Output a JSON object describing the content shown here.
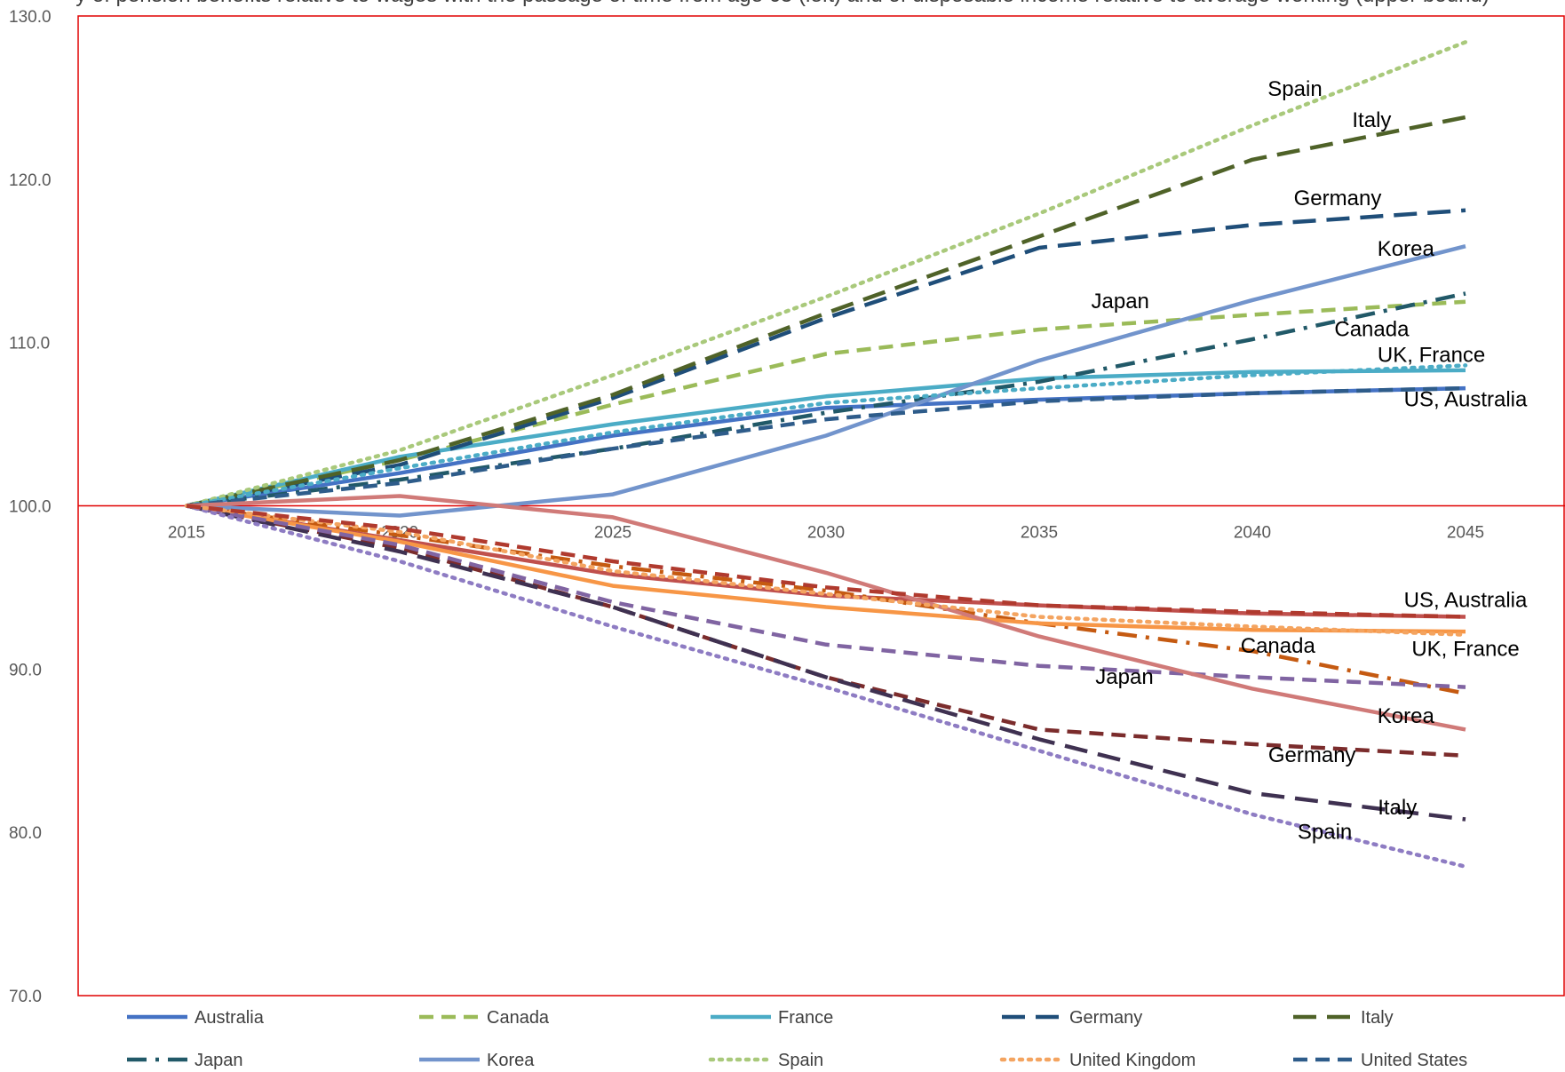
{
  "chart_data": {
    "type": "line",
    "title": "y of pension benefits relative to wages with the passage of time from age 65 (left) and of disposable income relative to average working (upper bound)",
    "xlabel": "",
    "ylabel": "",
    "ylim": [
      70,
      130
    ],
    "yticks": [
      "130.0",
      "120.0",
      "110.0",
      "100.0",
      "90.0",
      "80.0",
      "70.0"
    ],
    "x": [
      "2015",
      "2020",
      "2025",
      "2030",
      "2035",
      "2040",
      "2045"
    ],
    "grid": false,
    "legend": "bottom",
    "series": [
      {
        "name": "Australia",
        "group": "upper",
        "color": "#4472C4",
        "dash": "solid",
        "values": [
          100,
          102.0,
          104.3,
          106.0,
          106.5,
          106.9,
          107.2
        ]
      },
      {
        "name": "Canada",
        "group": "upper",
        "color": "#9BBB59",
        "dash": "dash",
        "values": [
          100,
          102.8,
          106.2,
          109.3,
          110.8,
          111.7,
          112.5
        ]
      },
      {
        "name": "France",
        "group": "upper",
        "color": "#4BACC6",
        "dash": "solid",
        "values": [
          100,
          103.0,
          105.0,
          106.7,
          107.8,
          108.2,
          108.3
        ]
      },
      {
        "name": "Germany",
        "group": "upper",
        "color": "#1F4E79",
        "dash": "longdash",
        "values": [
          100,
          102.5,
          106.6,
          111.5,
          115.8,
          117.2,
          118.1
        ]
      },
      {
        "name": "Italy",
        "group": "upper",
        "color": "#4F6228",
        "dash": "longdash",
        "values": [
          100,
          102.8,
          106.8,
          111.8,
          116.5,
          121.2,
          123.8
        ]
      },
      {
        "name": "Japan",
        "group": "upper",
        "color": "#215968",
        "dash": "dashdot",
        "values": [
          100,
          101.6,
          103.5,
          105.7,
          107.6,
          110.2,
          113.0
        ]
      },
      {
        "name": "Korea",
        "group": "upper",
        "color": "#7294CC",
        "dash": "solid",
        "values": [
          100,
          99.4,
          100.7,
          104.3,
          108.9,
          112.6,
          115.9
        ]
      },
      {
        "name": "Spain",
        "group": "upper",
        "color": "#A9C97B",
        "dash": "dot",
        "values": [
          100,
          103.4,
          108.0,
          112.8,
          117.9,
          123.3,
          128.4
        ]
      },
      {
        "name": "United Kingdom",
        "group": "upper",
        "color": "#4BACC6",
        "dash": "dot",
        "values": [
          100,
          102.3,
          104.5,
          106.3,
          107.2,
          108.0,
          108.6
        ]
      },
      {
        "name": "United States",
        "group": "upper",
        "color": "#2E5C8A",
        "dash": "dash",
        "values": [
          100,
          101.4,
          103.5,
          105.3,
          106.4,
          106.9,
          107.2
        ]
      },
      {
        "name": "Australia",
        "group": "lower",
        "color": "#C0504D",
        "dash": "solid",
        "values": [
          100,
          97.9,
          95.8,
          94.5,
          93.9,
          93.4,
          93.2
        ]
      },
      {
        "name": "Canada",
        "group": "lower",
        "color": "#C55A11",
        "dash": "dashdot",
        "values": [
          100,
          98.2,
          96.3,
          94.8,
          92.8,
          91.1,
          88.5
        ]
      },
      {
        "name": "France",
        "group": "lower",
        "color": "#F79646",
        "dash": "solid",
        "values": [
          100,
          97.8,
          95.1,
          93.8,
          92.8,
          92.4,
          92.3
        ]
      },
      {
        "name": "Germany",
        "group": "lower",
        "color": "#7B2C2C",
        "dash": "dash",
        "values": [
          100,
          97.4,
          93.8,
          89.5,
          86.3,
          85.4,
          84.7
        ]
      },
      {
        "name": "Italy",
        "group": "lower",
        "color": "#3F3151",
        "dash": "longdash",
        "values": [
          100,
          97.2,
          93.8,
          89.5,
          85.7,
          82.4,
          80.8
        ]
      },
      {
        "name": "Japan",
        "group": "lower",
        "color": "#8064A2",
        "dash": "dash",
        "values": [
          100,
          97.6,
          94.1,
          91.5,
          90.2,
          89.5,
          88.9
        ]
      },
      {
        "name": "Korea",
        "group": "lower",
        "color": "#D07A78",
        "dash": "solid",
        "values": [
          100,
          100.6,
          99.3,
          95.9,
          92.0,
          88.8,
          86.3
        ]
      },
      {
        "name": "Spain",
        "group": "lower",
        "color": "#8E7CC3",
        "dash": "dot",
        "values": [
          100,
          96.6,
          92.6,
          88.9,
          85.0,
          81.1,
          77.9
        ]
      },
      {
        "name": "United Kingdom",
        "group": "lower",
        "color": "#F4A460",
        "dash": "dot",
        "values": [
          100,
          98.4,
          96.0,
          94.6,
          93.2,
          92.6,
          92.1
        ]
      },
      {
        "name": "United States",
        "group": "lower",
        "color": "#B03A2E",
        "dash": "dash",
        "values": [
          100,
          98.6,
          96.6,
          95.0,
          93.9,
          93.5,
          93.2
        ]
      }
    ],
    "annotations": [
      {
        "text": "Spain",
        "x": 2041.0,
        "y": 125.1
      },
      {
        "text": "Italy",
        "x": 2042.8,
        "y": 123.2
      },
      {
        "text": "Germany",
        "x": 2042.0,
        "y": 118.4
      },
      {
        "text": "Korea",
        "x": 2043.6,
        "y": 115.3
      },
      {
        "text": "Japan",
        "x": 2036.9,
        "y": 112.1
      },
      {
        "text": "Canada",
        "x": 2042.8,
        "y": 110.4
      },
      {
        "text": "UK, France",
        "x": 2044.2,
        "y": 108.8
      },
      {
        "text": "US, Australia",
        "x": 2045.0,
        "y": 106.1
      },
      {
        "text": "US, Australia",
        "x": 2045.0,
        "y": 93.8
      },
      {
        "text": "Canada",
        "x": 2040.6,
        "y": 91.0
      },
      {
        "text": "UK, France",
        "x": 2045.0,
        "y": 90.8
      },
      {
        "text": "Japan",
        "x": 2037.0,
        "y": 89.1
      },
      {
        "text": "Korea",
        "x": 2043.6,
        "y": 86.7
      },
      {
        "text": "Germany",
        "x": 2041.4,
        "y": 84.3
      },
      {
        "text": "Italy",
        "x": 2043.4,
        "y": 81.1
      },
      {
        "text": "Spain",
        "x": 2041.7,
        "y": 79.6
      }
    ],
    "legend_entries": [
      {
        "name": "Australia",
        "color": "#4472C4",
        "dash": "solid"
      },
      {
        "name": "Canada",
        "color": "#9BBB59",
        "dash": "dash"
      },
      {
        "name": "France",
        "color": "#4BACC6",
        "dash": "solid"
      },
      {
        "name": "Germany",
        "color": "#1F4E79",
        "dash": "longdash"
      },
      {
        "name": "Italy",
        "color": "#4F6228",
        "dash": "longdash"
      },
      {
        "name": "Japan",
        "color": "#215968",
        "dash": "dashdot"
      },
      {
        "name": "Korea",
        "color": "#7294CC",
        "dash": "solid"
      },
      {
        "name": "Spain",
        "color": "#A9C97B",
        "dash": "dot"
      },
      {
        "name": "United Kingdom",
        "color": "#F4A460",
        "dash": "dot"
      },
      {
        "name": "United States",
        "color": "#2E5C8A",
        "dash": "dash"
      }
    ],
    "baseline": 100,
    "frame_color": "#E00000"
  }
}
